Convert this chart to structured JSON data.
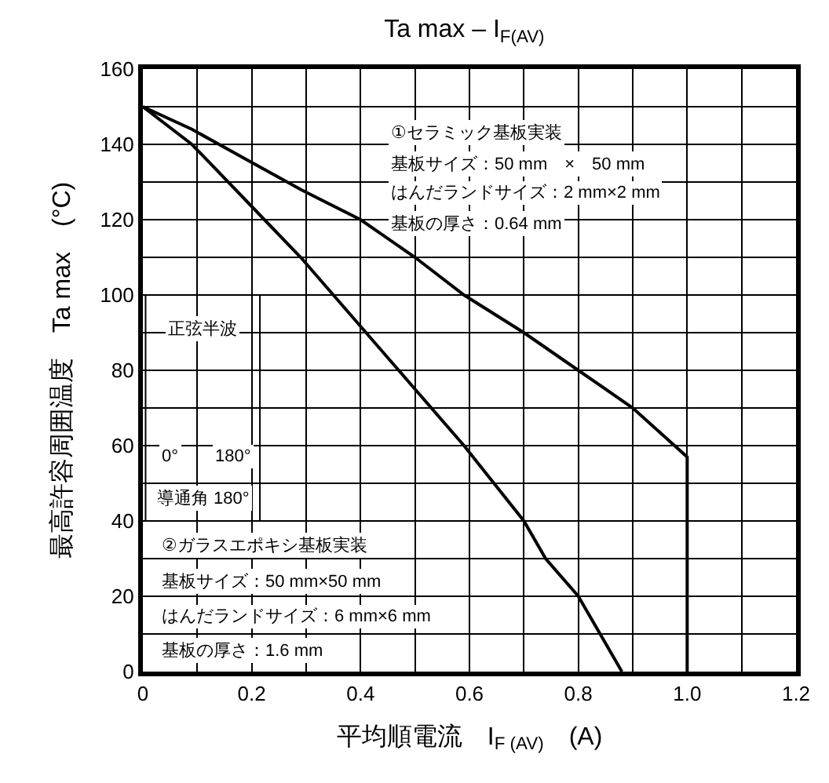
{
  "chart_data": {
    "type": "line",
    "title": "Ta max – I$_{F(AV)}$",
    "xlabel": "平均順電流　I$_{F (AV)}$　(A)",
    "ylabel": "最高許容周囲温度　Ta max　(°C)",
    "xlim": [
      0,
      1.2
    ],
    "xticks": [
      0,
      0.2,
      0.4,
      0.6,
      0.8,
      {
        "value": 1.0,
        "label": "1.0"
      },
      1.2
    ],
    "ylim": [
      0,
      160
    ],
    "yticks": [
      0,
      20,
      40,
      60,
      80,
      100,
      120,
      140,
      160
    ],
    "grid": true,
    "marker": "none",
    "line_style": "solid",
    "series": [
      {
        "color": "#000000",
        "x": [
          0,
          0.09,
          0.19,
          0.29,
          0.4,
          0.5,
          0.59,
          0.7,
          0.8,
          0.9,
          1.0,
          1.0
        ],
        "values": [
          150,
          144,
          136,
          128,
          120,
          110,
          100,
          90,
          80,
          70,
          57,
          0
        ]
      },
      {
        "color": "#000000",
        "x": [
          0,
          0.09,
          0.19,
          0.29,
          0.35,
          0.41,
          0.5,
          0.59,
          0.7,
          0.74,
          0.8,
          0.88
        ],
        "values": [
          150,
          140,
          125,
          110,
          100,
          90,
          75,
          60,
          40,
          30,
          20,
          0
        ]
      }
    ],
    "annotations": [
      "①セラミック基板実装",
      "基板サイズ：50 mm　×　50 mm",
      "はんだランドサイズ：2 mm×2 mm",
      "基板の厚さ：0.64 mm",
      "正弦半波",
      "0°",
      "180°",
      "導通角 180°",
      "②ガラスエポキシ基板実装",
      "基板サイズ：50 mm×50 mm",
      "はんだランドサイズ：6 mm×6 mm",
      "基板の厚さ：1.6 mm"
    ]
  }
}
